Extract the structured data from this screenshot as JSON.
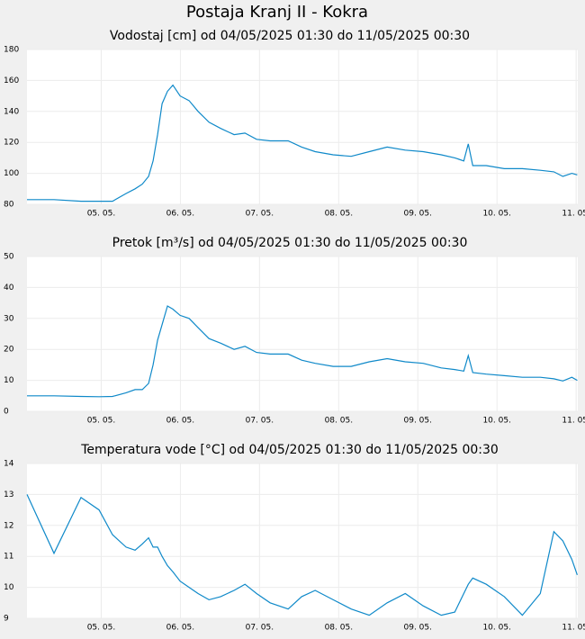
{
  "title": "Postaja Kranj II - Kokra",
  "chart_data": [
    {
      "type": "line",
      "title": "Vodostaj [cm] od 04/05/2025 01:30 do 11/05/2025 00:30",
      "color": "#0f89c9",
      "grid": true,
      "x": [
        4.063,
        4.404,
        4.745,
        4.973,
        5.143,
        5.314,
        5.428,
        5.519,
        5.598,
        5.655,
        5.712,
        5.769,
        5.837,
        5.906,
        5.997,
        6.11,
        6.224,
        6.361,
        6.509,
        6.679,
        6.816,
        6.963,
        7.134,
        7.362,
        7.532,
        7.703,
        7.93,
        8.158,
        8.386,
        8.613,
        8.841,
        9.068,
        9.296,
        9.466,
        9.58,
        9.637,
        9.694,
        9.865,
        10.092,
        10.32,
        10.547,
        10.718,
        10.832,
        10.946,
        11.014
      ],
      "values": [
        83,
        83,
        82,
        82,
        82,
        87,
        90,
        93,
        98,
        108,
        125,
        145,
        153,
        157,
        150,
        147,
        140,
        133,
        129,
        125,
        126,
        122,
        121,
        121,
        117,
        114,
        112,
        111,
        114,
        117,
        115,
        114,
        112,
        110,
        108,
        119,
        105,
        105,
        103,
        103,
        102,
        101,
        98,
        100,
        99
      ],
      "xlim": [
        4.0625,
        11.0208
      ],
      "xticks": [
        {
          "value": 5,
          "label": "05. 05."
        },
        {
          "value": 6,
          "label": "06. 05."
        },
        {
          "value": 7,
          "label": "07. 05."
        },
        {
          "value": 8,
          "label": "08. 05."
        },
        {
          "value": 9,
          "label": "09. 05."
        },
        {
          "value": 10,
          "label": "10. 05."
        },
        {
          "value": 11,
          "label": "11. 05."
        }
      ],
      "ylim": [
        80,
        180
      ],
      "yticks": [
        80,
        100,
        120,
        140,
        160,
        180
      ]
    },
    {
      "type": "line",
      "title": "Pretok [m³/s] od 04/05/2025 01:30 do 11/05/2025 00:30",
      "color": "#0f89c9",
      "grid": true,
      "x": [
        4.063,
        4.404,
        4.745,
        4.973,
        5.143,
        5.314,
        5.428,
        5.519,
        5.598,
        5.655,
        5.712,
        5.769,
        5.837,
        5.906,
        5.997,
        6.11,
        6.224,
        6.361,
        6.509,
        6.679,
        6.816,
        6.963,
        7.134,
        7.362,
        7.532,
        7.703,
        7.93,
        8.158,
        8.386,
        8.613,
        8.841,
        9.068,
        9.296,
        9.466,
        9.58,
        9.637,
        9.694,
        9.865,
        10.092,
        10.32,
        10.547,
        10.718,
        10.832,
        10.946,
        11.014
      ],
      "values": [
        5,
        5,
        4.8,
        4.7,
        4.8,
        6,
        7,
        7,
        9,
        15,
        23,
        28,
        34,
        33,
        31,
        30,
        27,
        23.5,
        22,
        20,
        21,
        19,
        18.5,
        18.5,
        16.5,
        15.5,
        14.5,
        14.5,
        16,
        17,
        16,
        15.5,
        14,
        13.5,
        13,
        18,
        12.5,
        12,
        11.5,
        11,
        11,
        10.5,
        9.8,
        11,
        10
      ],
      "xlim": [
        4.0625,
        11.0208
      ],
      "xticks": [
        {
          "value": 5,
          "label": "05. 05."
        },
        {
          "value": 6,
          "label": "06. 05."
        },
        {
          "value": 7,
          "label": "07. 05."
        },
        {
          "value": 8,
          "label": "08. 05."
        },
        {
          "value": 9,
          "label": "09. 05."
        },
        {
          "value": 10,
          "label": "10. 05."
        },
        {
          "value": 11,
          "label": "11. 05."
        }
      ],
      "ylim": [
        0,
        50
      ],
      "yticks": [
        0,
        10,
        20,
        30,
        40,
        50
      ]
    },
    {
      "type": "line",
      "title": "Temperatura vode [°C] od 04/05/2025 01:30 do 11/05/2025 00:30",
      "color": "#0f89c9",
      "grid": true,
      "x": [
        4.063,
        4.404,
        4.745,
        4.973,
        5.143,
        5.314,
        5.428,
        5.519,
        5.598,
        5.655,
        5.712,
        5.769,
        5.837,
        5.906,
        5.997,
        6.11,
        6.224,
        6.361,
        6.509,
        6.679,
        6.816,
        6.963,
        7.134,
        7.362,
        7.532,
        7.703,
        7.93,
        8.158,
        8.386,
        8.613,
        8.841,
        9.068,
        9.296,
        9.466,
        9.58,
        9.637,
        9.694,
        9.865,
        10.092,
        10.32,
        10.547,
        10.718,
        10.832,
        10.946,
        11.014
      ],
      "values": [
        13.0,
        11.1,
        12.9,
        12.5,
        11.7,
        11.3,
        11.2,
        11.4,
        11.6,
        11.3,
        11.3,
        11.0,
        10.7,
        10.5,
        10.2,
        10.0,
        9.8,
        9.6,
        9.7,
        9.9,
        10.1,
        9.8,
        9.5,
        9.3,
        9.7,
        9.9,
        9.6,
        9.3,
        9.1,
        9.5,
        9.8,
        9.4,
        9.1,
        9.2,
        9.8,
        10.1,
        10.3,
        10.1,
        9.7,
        9.1,
        9.8,
        11.8,
        11.5,
        10.9,
        10.4
      ],
      "xlim": [
        4.0625,
        11.0208
      ],
      "xticks": [
        {
          "value": 5,
          "label": "05. 05."
        },
        {
          "value": 6,
          "label": "06. 05."
        },
        {
          "value": 7,
          "label": "07. 05."
        },
        {
          "value": 8,
          "label": "08. 05."
        },
        {
          "value": 9,
          "label": "09. 05."
        },
        {
          "value": 10,
          "label": "10. 05."
        },
        {
          "value": 11,
          "label": "11. 05."
        }
      ],
      "ylim": [
        9,
        14
      ],
      "yticks": [
        9,
        10,
        11,
        12,
        13,
        14
      ]
    }
  ]
}
